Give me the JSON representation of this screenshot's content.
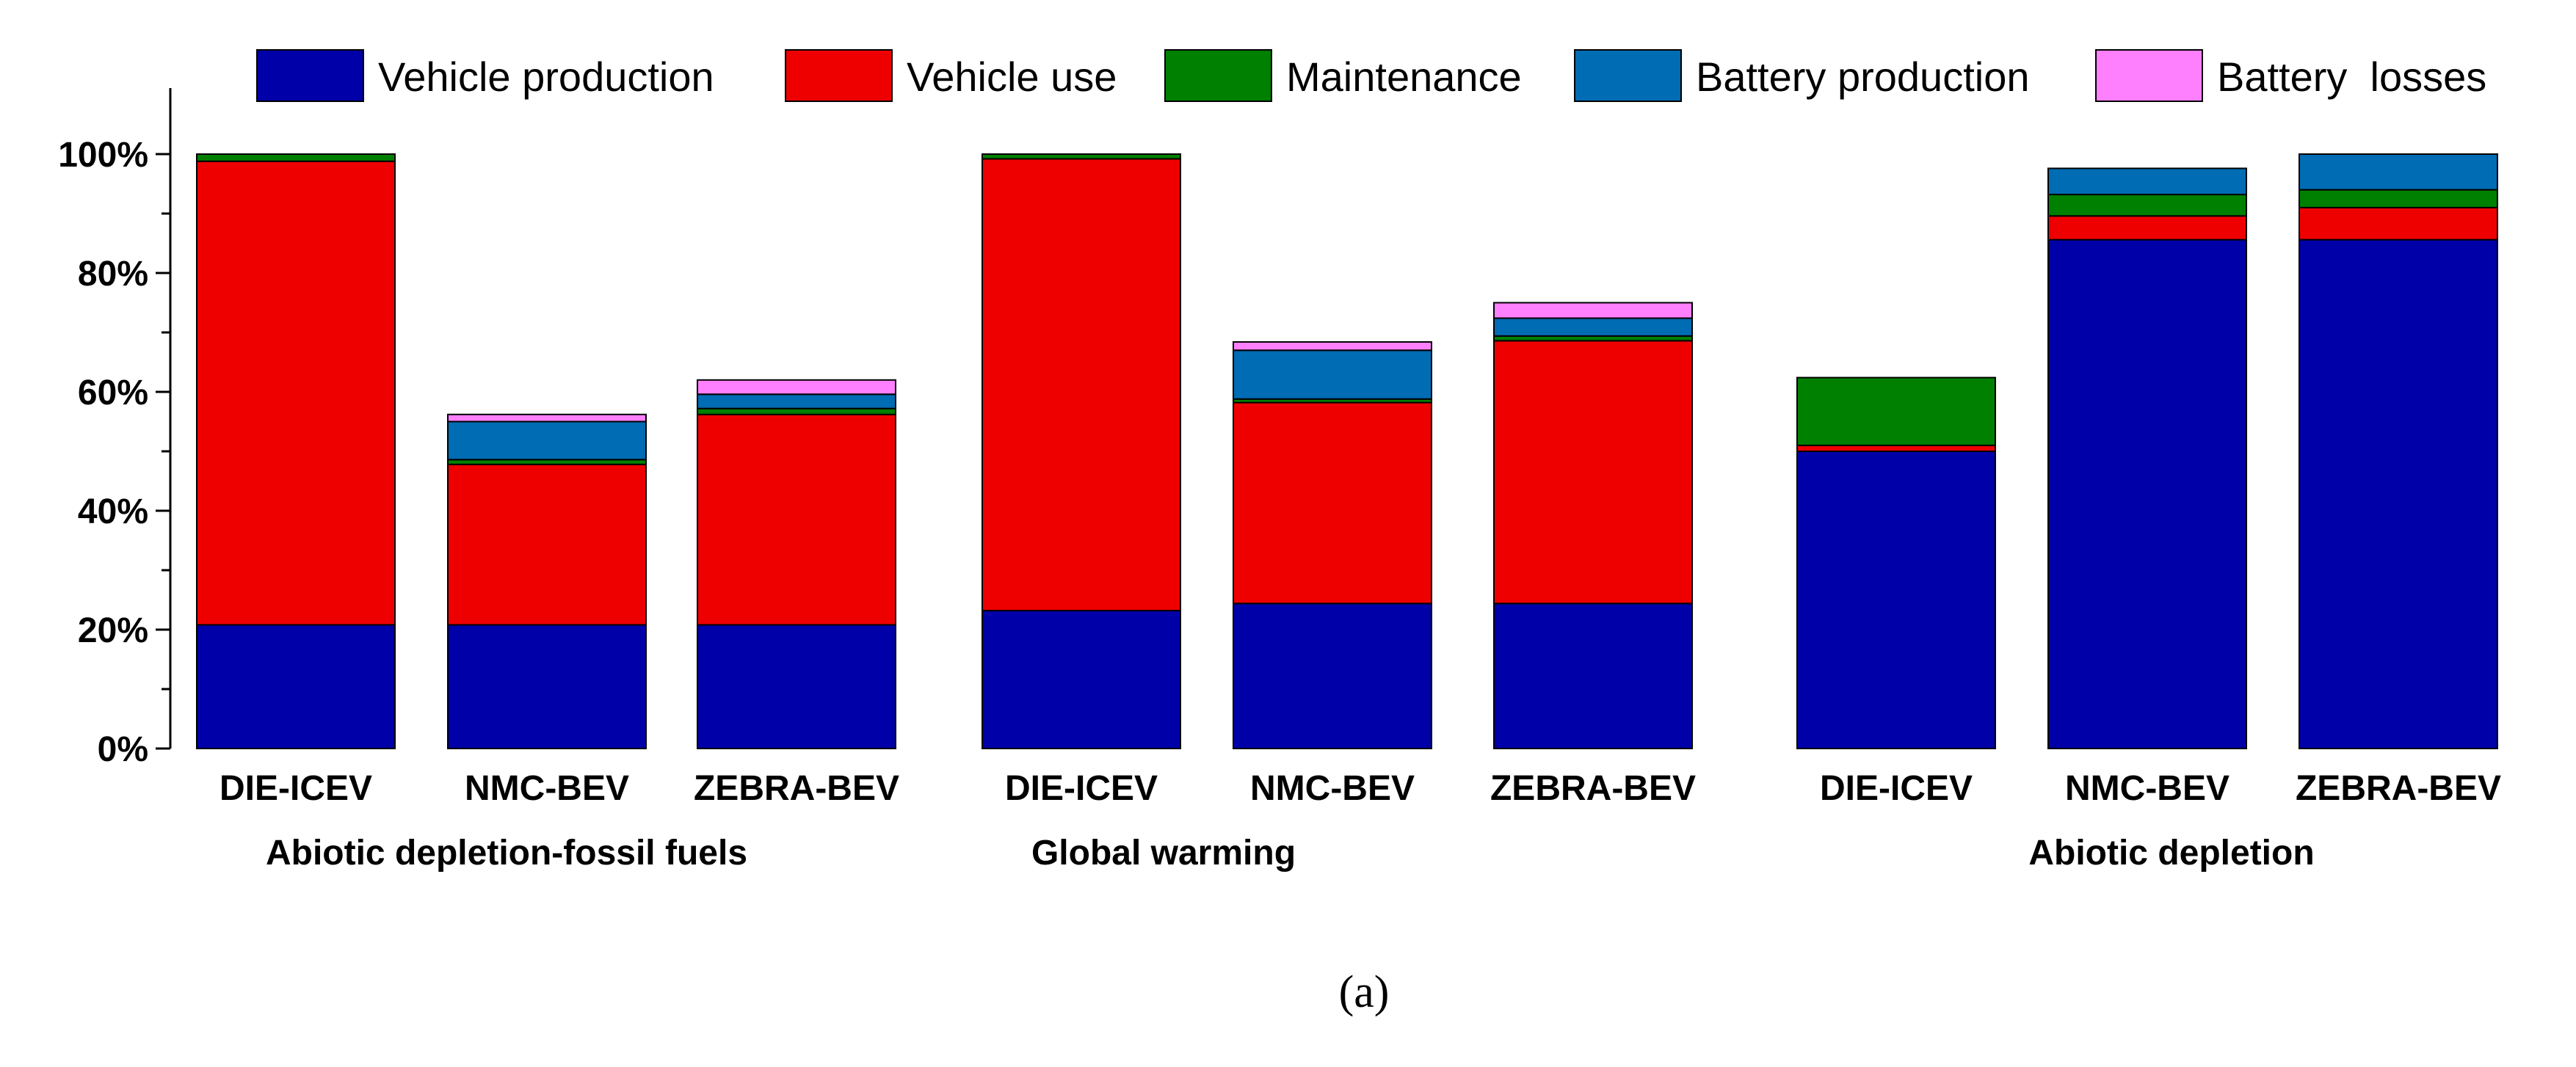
{
  "chart_data": {
    "type": "bar",
    "stacked": true,
    "ylim": [
      0,
      100
    ],
    "y_ticks": [
      "0%",
      "20%",
      "40%",
      "60%",
      "80%",
      "100%"
    ],
    "y_tick_values": [
      0,
      20,
      40,
      60,
      80,
      100
    ],
    "legend_position": "top",
    "series": [
      {
        "name": "Vehicle production",
        "color": "#0000a8"
      },
      {
        "name": "Vehicle use",
        "color": "#ee0000"
      },
      {
        "name": "Maintenance",
        "color": "#008000"
      },
      {
        "name": "Battery production",
        "color": "#006cb4"
      },
      {
        "name": "Battery  losses",
        "color": "#ff80ff"
      }
    ],
    "groups": [
      {
        "label": "Abiotic depletion-fossil fuels",
        "bars": [
          {
            "category": "DIE-ICEV",
            "values": [
              20.8,
              78.0,
              1.2,
              0,
              0
            ]
          },
          {
            "category": "NMC-BEV",
            "values": [
              20.8,
              27.0,
              0.8,
              6.4,
              1.2
            ]
          },
          {
            "category": "ZEBRA-BEV",
            "values": [
              20.8,
              35.4,
              1.0,
              2.4,
              2.4
            ]
          }
        ]
      },
      {
        "label": "Global warming",
        "bars": [
          {
            "category": "DIE-ICEV",
            "values": [
              23.2,
              76.0,
              0.8,
              0,
              0
            ]
          },
          {
            "category": "NMC-BEV",
            "values": [
              24.4,
              33.8,
              0.6,
              8.2,
              1.4
            ]
          },
          {
            "category": "ZEBRA-BEV",
            "values": [
              24.4,
              44.2,
              0.8,
              3.0,
              2.6
            ]
          }
        ]
      },
      {
        "label": "Abiotic depletion",
        "bars": [
          {
            "category": "DIE-ICEV",
            "values": [
              50.0,
              1.0,
              11.4,
              0,
              0
            ]
          },
          {
            "category": "NMC-BEV",
            "values": [
              85.6,
              4.0,
              3.6,
              4.4,
              0
            ]
          },
          {
            "category": "ZEBRA-BEV",
            "values": [
              85.6,
              5.4,
              3.0,
              6.0,
              0
            ]
          }
        ]
      }
    ]
  },
  "caption": "(a)"
}
